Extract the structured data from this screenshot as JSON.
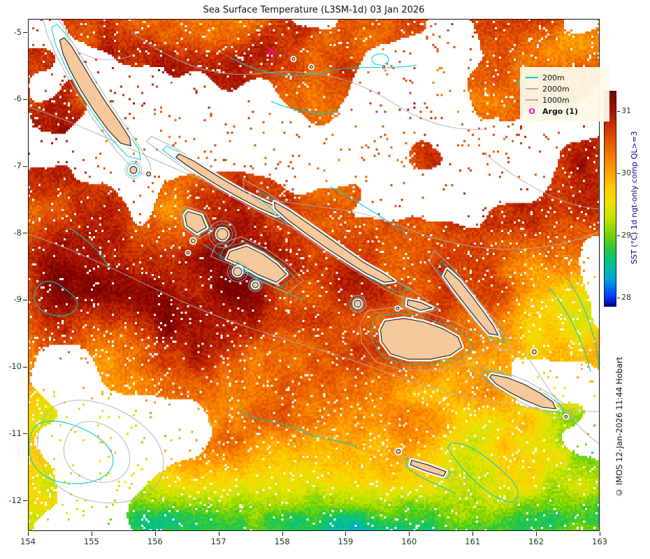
{
  "figure": {
    "title": "Sea Surface Temperature (L3SM-1d) 03 Jan 2026",
    "credit": "© IMOS 12-Jan-2026 11:44 Hobart"
  },
  "axes": {
    "x": {
      "min": 154,
      "max": 163,
      "ticks": [
        154,
        155,
        156,
        157,
        158,
        159,
        160,
        161,
        162,
        163
      ]
    },
    "y": {
      "min": -12.46,
      "max": -4.8,
      "ticks": [
        -5,
        -6,
        -7,
        -8,
        -9,
        -10,
        -11,
        -12
      ]
    }
  },
  "colorbar": {
    "label": "SST (°C) 1d ngt-only comp QL>=3",
    "ticks": [
      31,
      30,
      29,
      28
    ],
    "vmin": 27.88,
    "vmax": 31.32,
    "stops": [
      {
        "v": 31.32,
        "c": "#790000"
      },
      {
        "v": 31.0,
        "c": "#a81400"
      },
      {
        "v": 30.7,
        "c": "#d43c00"
      },
      {
        "v": 30.35,
        "c": "#f07000"
      },
      {
        "v": 30.05,
        "c": "#ff9d00"
      },
      {
        "v": 29.8,
        "c": "#ffc400"
      },
      {
        "v": 29.55,
        "c": "#f0e000"
      },
      {
        "v": 29.3,
        "c": "#c8e200"
      },
      {
        "v": 29.05,
        "c": "#7fd400"
      },
      {
        "v": 28.8,
        "c": "#2cc83c"
      },
      {
        "v": 28.55,
        "c": "#00c192"
      },
      {
        "v": 28.3,
        "c": "#00a2e0"
      },
      {
        "v": 28.05,
        "c": "#0040ff"
      },
      {
        "v": 27.88,
        "c": "#0000a0"
      }
    ]
  },
  "legend": {
    "items": [
      {
        "label": "200m",
        "type": "line",
        "color": "#00cccc"
      },
      {
        "label": "2000m",
        "type": "line",
        "color": "#b0b0b0"
      },
      {
        "label": "1000m",
        "type": "line",
        "color": "#b0b0b0"
      },
      {
        "label": "Argo (1)",
        "type": "marker",
        "color": "#ff00cc",
        "symbol": "O"
      }
    ]
  },
  "map": {
    "argo": {
      "symbol": "O",
      "lon": 157.83,
      "lat": -5.3
    },
    "colors": {
      "land": "#f5c99b",
      "coast": "#1a1a1a",
      "contour_200m": "#00cccc",
      "contour_deep": "#b0b0b0",
      "axis_label": "#143d14",
      "cbar_label": "#00008b",
      "argo": "#ff00cc",
      "halo": "#ffffff"
    },
    "land": [
      {
        "name": "bougainville",
        "pts": [
          [
            154.5,
            -5.12
          ],
          [
            154.57,
            -5.08
          ],
          [
            154.68,
            -5.2
          ],
          [
            154.84,
            -5.45
          ],
          [
            155.02,
            -5.74
          ],
          [
            155.22,
            -6.04
          ],
          [
            155.44,
            -6.34
          ],
          [
            155.6,
            -6.58
          ],
          [
            155.62,
            -6.7
          ],
          [
            155.46,
            -6.66
          ],
          [
            155.26,
            -6.46
          ],
          [
            155.03,
            -6.16
          ],
          [
            154.83,
            -5.86
          ],
          [
            154.66,
            -5.56
          ],
          [
            154.55,
            -5.32
          ]
        ]
      },
      {
        "name": "choiseul",
        "pts": [
          [
            156.38,
            -6.82
          ],
          [
            156.62,
            -6.93
          ],
          [
            156.88,
            -7.09
          ],
          [
            157.14,
            -7.24
          ],
          [
            157.42,
            -7.39
          ],
          [
            157.72,
            -7.53
          ],
          [
            157.98,
            -7.64
          ],
          [
            158.07,
            -7.72
          ],
          [
            157.9,
            -7.74
          ],
          [
            157.62,
            -7.62
          ],
          [
            157.32,
            -7.47
          ],
          [
            157.02,
            -7.31
          ],
          [
            156.72,
            -7.13
          ],
          [
            156.47,
            -6.97
          ],
          [
            156.33,
            -6.87
          ]
        ]
      },
      {
        "name": "santa-isabel",
        "pts": [
          [
            157.88,
            -7.54
          ],
          [
            158.12,
            -7.67
          ],
          [
            158.38,
            -7.84
          ],
          [
            158.68,
            -8.04
          ],
          [
            158.98,
            -8.24
          ],
          [
            159.28,
            -8.44
          ],
          [
            159.58,
            -8.6
          ],
          [
            159.77,
            -8.72
          ],
          [
            159.61,
            -8.74
          ],
          [
            159.31,
            -8.6
          ],
          [
            159.01,
            -8.42
          ],
          [
            158.69,
            -8.22
          ],
          [
            158.39,
            -8.02
          ],
          [
            158.11,
            -7.82
          ],
          [
            157.89,
            -7.64
          ]
        ]
      },
      {
        "name": "malaita",
        "pts": [
          [
            160.6,
            -8.55
          ],
          [
            160.8,
            -8.72
          ],
          [
            160.99,
            -8.95
          ],
          [
            161.17,
            -9.18
          ],
          [
            161.32,
            -9.38
          ],
          [
            161.4,
            -9.53
          ],
          [
            161.26,
            -9.51
          ],
          [
            161.08,
            -9.31
          ],
          [
            160.89,
            -9.08
          ],
          [
            160.7,
            -8.85
          ],
          [
            160.55,
            -8.65
          ]
        ]
      },
      {
        "name": "guadalcanal",
        "pts": [
          [
            159.62,
            -9.32
          ],
          [
            159.92,
            -9.28
          ],
          [
            160.22,
            -9.33
          ],
          [
            160.52,
            -9.43
          ],
          [
            160.77,
            -9.56
          ],
          [
            160.83,
            -9.71
          ],
          [
            160.65,
            -9.83
          ],
          [
            160.34,
            -9.89
          ],
          [
            159.99,
            -9.89
          ],
          [
            159.71,
            -9.81
          ],
          [
            159.57,
            -9.63
          ],
          [
            159.55,
            -9.45
          ]
        ]
      },
      {
        "name": "makira",
        "pts": [
          [
            161.3,
            -10.12
          ],
          [
            161.56,
            -10.17
          ],
          [
            161.82,
            -10.27
          ],
          [
            162.07,
            -10.4
          ],
          [
            162.26,
            -10.53
          ],
          [
            162.31,
            -10.63
          ],
          [
            162.1,
            -10.61
          ],
          [
            161.84,
            -10.51
          ],
          [
            161.59,
            -10.39
          ],
          [
            161.37,
            -10.26
          ],
          [
            161.27,
            -10.16
          ]
        ]
      },
      {
        "name": "new-georgia",
        "pts": [
          [
            157.18,
            -8.28
          ],
          [
            157.44,
            -8.2
          ],
          [
            157.7,
            -8.32
          ],
          [
            157.92,
            -8.47
          ],
          [
            158.07,
            -8.62
          ],
          [
            157.91,
            -8.74
          ],
          [
            157.61,
            -8.62
          ],
          [
            157.34,
            -8.47
          ],
          [
            157.13,
            -8.39
          ]
        ]
      },
      {
        "name": "vella-lavella",
        "pts": [
          [
            156.52,
            -7.68
          ],
          [
            156.73,
            -7.74
          ],
          [
            156.81,
            -7.92
          ],
          [
            156.66,
            -8.0
          ],
          [
            156.5,
            -7.89
          ],
          [
            156.47,
            -7.74
          ]
        ]
      },
      {
        "name": "rennell",
        "pts": [
          [
            160.04,
            -11.4
          ],
          [
            160.3,
            -11.47
          ],
          [
            160.58,
            -11.57
          ],
          [
            160.54,
            -11.64
          ],
          [
            160.26,
            -11.56
          ],
          [
            160.02,
            -11.47
          ]
        ]
      },
      {
        "name": "florida-islands",
        "pts": [
          [
            159.98,
            -9.0
          ],
          [
            160.18,
            -9.04
          ],
          [
            160.36,
            -9.12
          ],
          [
            160.18,
            -9.16
          ],
          [
            159.97,
            -9.08
          ]
        ]
      },
      {
        "name": "kolombangara",
        "c": [
          157.06,
          -8.02
        ],
        "r": 8
      },
      {
        "name": "rendova",
        "c": [
          157.3,
          -8.58
        ],
        "r": 6
      },
      {
        "name": "tetepare",
        "c": [
          157.58,
          -8.78
        ],
        "r": 4
      },
      {
        "name": "shortland",
        "c": [
          155.66,
          -7.06
        ],
        "r": 5
      },
      {
        "name": "shortland-2",
        "c": [
          155.9,
          -7.12
        ],
        "r": 3
      },
      {
        "name": "russell-islands",
        "c": [
          159.19,
          -9.06
        ],
        "r": 5
      },
      {
        "name": "gizo",
        "c": [
          156.6,
          -8.12
        ],
        "r": 3
      },
      {
        "name": "simbo",
        "c": [
          156.52,
          -8.3
        ],
        "r": 2
      },
      {
        "name": "bellona",
        "c": [
          159.83,
          -11.27
        ],
        "r": 3
      },
      {
        "name": "ulawa",
        "c": [
          161.97,
          -9.78
        ],
        "r": 3
      },
      {
        "name": "santa-ana",
        "c": [
          162.47,
          -10.75
        ],
        "r": 2
      },
      {
        "name": "savo",
        "c": [
          159.82,
          -9.13
        ],
        "r": 2
      },
      {
        "name": "islet-1",
        "c": [
          158.18,
          -5.4
        ],
        "r": 2
      },
      {
        "name": "islet-2",
        "c": [
          158.46,
          -5.52
        ],
        "r": 2
      },
      {
        "name": "islet-3",
        "c": [
          159.6,
          -5.52
        ],
        "r": 2
      }
    ]
  }
}
